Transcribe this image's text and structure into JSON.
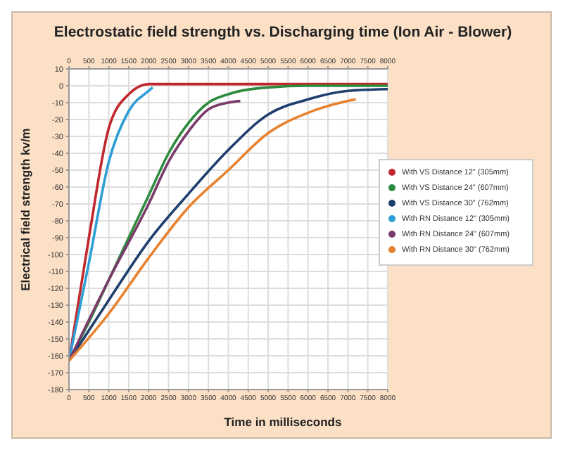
{
  "chart_data": {
    "type": "line",
    "title": "Electrostatic field strength vs. Discharging time (Ion Air - Blower)",
    "xlabel": "Time in milliseconds",
    "ylabel": "Electrical field strength kv/m",
    "xlim": [
      0,
      8000
    ],
    "xticks": [
      0,
      500,
      1000,
      1500,
      2000,
      2500,
      3000,
      3500,
      4000,
      4500,
      5000,
      5500,
      6000,
      6500,
      7000,
      7500,
      8000
    ],
    "x2lim": [
      0,
      8000
    ],
    "x2ticks": [
      0,
      500,
      1000,
      1500,
      2000,
      2500,
      3000,
      3500,
      4000,
      4500,
      5000,
      5500,
      6000,
      6500,
      7000,
      7500,
      8000
    ],
    "ylim": [
      -180,
      10
    ],
    "yticks": [
      -180,
      -170,
      -160,
      -150,
      -140,
      -130,
      -120,
      -110,
      -100,
      -90,
      -80,
      -70,
      -60,
      -50,
      -40,
      -30,
      -20,
      -10,
      0,
      10
    ],
    "grid": true,
    "legend": "right",
    "marker": "none",
    "line_style": "solid",
    "series": [
      {
        "name": "With VS Distance 12\" (305mm)",
        "color": "#c0282d",
        "x": [
          0,
          500,
          1000,
          1500,
          2000,
          3000,
          4000,
          5000,
          6000,
          7000,
          8000
        ],
        "values": [
          -163,
          -90,
          -25,
          -5,
          1,
          1,
          1,
          1,
          1,
          1,
          1
        ]
      },
      {
        "name": "With VS Distance 24\" (607mm)",
        "color": "#2e8b3e",
        "x": [
          0,
          500,
          1000,
          1500,
          2000,
          2500,
          3000,
          3500,
          4000,
          5000,
          6000,
          7000,
          8000
        ],
        "values": [
          -163,
          -140,
          -115,
          -90,
          -65,
          -40,
          -22,
          -10,
          -5,
          -1,
          0,
          0,
          0
        ]
      },
      {
        "name": "With VS Distance 30\" (762mm)",
        "color": "#1f3f6e",
        "x": [
          0,
          1000,
          2000,
          3000,
          4000,
          5000,
          6000,
          7000,
          8000
        ],
        "values": [
          -163,
          -127,
          -92,
          -64,
          -38,
          -17,
          -8,
          -3,
          -2
        ]
      },
      {
        "name": "With RN Distance 12\" (305mm)",
        "color": "#2e9fd6",
        "x": [
          0,
          500,
          1000,
          1500,
          2000,
          2100
        ],
        "values": [
          -163,
          -105,
          -45,
          -15,
          -3,
          -1
        ]
      },
      {
        "name": "With RN Distance 24\" (607mm)",
        "color": "#7a3b6b",
        "x": [
          0,
          1000,
          2000,
          2500,
          3000,
          3500,
          4000,
          4300
        ],
        "values": [
          -163,
          -115,
          -70,
          -45,
          -27,
          -14,
          -10,
          -9
        ]
      },
      {
        "name": "With RN Distance 30\" (762mm)",
        "color": "#e8822e",
        "x": [
          0,
          1000,
          2000,
          3000,
          4000,
          5000,
          6000,
          7000,
          7200
        ],
        "values": [
          -163,
          -135,
          -102,
          -72,
          -50,
          -28,
          -16,
          -9,
          -8
        ]
      }
    ]
  }
}
